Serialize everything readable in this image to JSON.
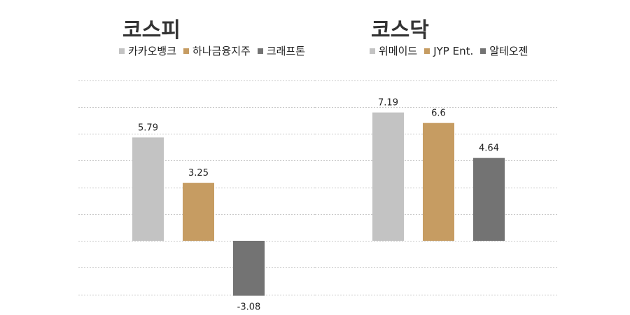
{
  "chart_data": [
    {
      "type": "bar",
      "title": "코스피",
      "categories": [
        "카카오뱅크",
        "하나금융지주",
        "크래프톤"
      ],
      "values": [
        5.79,
        3.25,
        -3.08
      ],
      "data_labels": [
        "5.79",
        "3.25",
        "-3.08"
      ],
      "colors": [
        "#c3c3c3",
        "#c69c62",
        "#737373"
      ],
      "ylim": [
        -4,
        8
      ],
      "legend": "top",
      "grid": true
    },
    {
      "type": "bar",
      "title": "코스닥",
      "categories": [
        "위메이드",
        "JYP Ent.",
        "알테오젠"
      ],
      "values": [
        7.19,
        6.6,
        4.64
      ],
      "data_labels": [
        "7.19",
        "6.6",
        "4.64"
      ],
      "colors": [
        "#c3c3c3",
        "#c69c62",
        "#737373"
      ],
      "ylim": [
        -4,
        8
      ],
      "legend": "top",
      "grid": true
    }
  ]
}
